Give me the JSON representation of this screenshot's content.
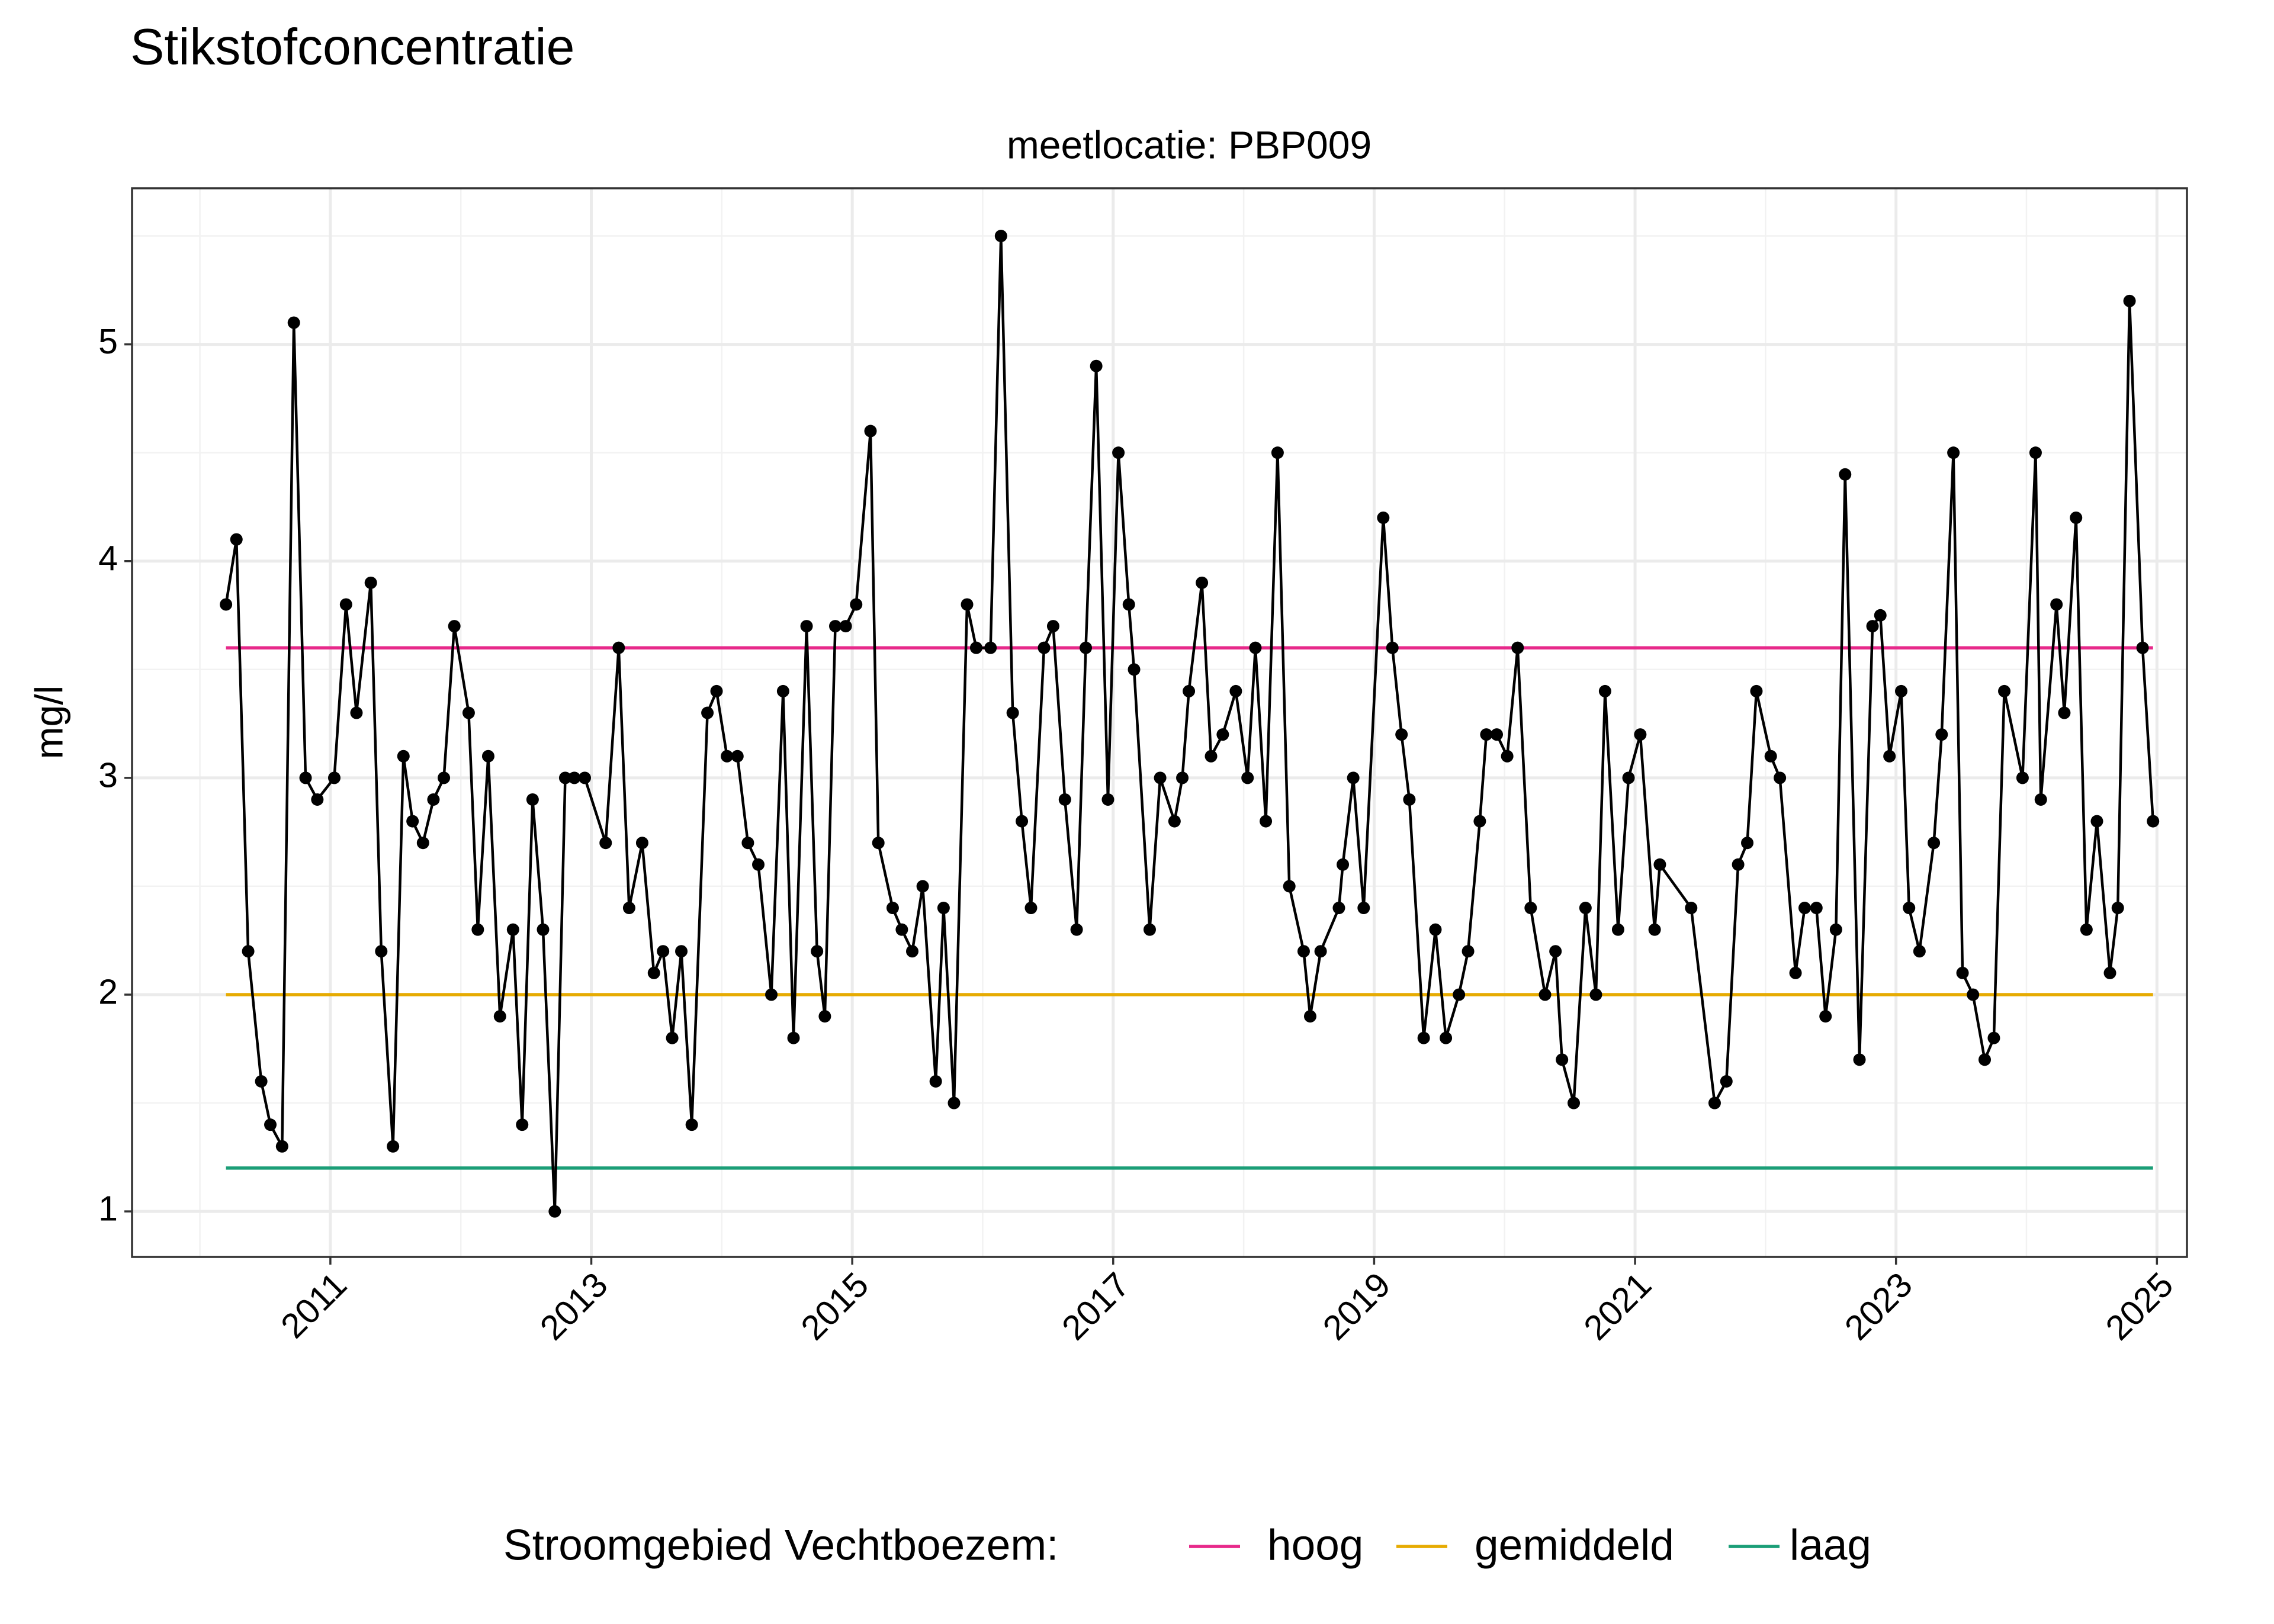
{
  "chart_data": {
    "type": "line",
    "title": "Stikstofconcentratie",
    "subtitle": "meetlocatie: PBP009",
    "ylabel": "mg/l",
    "legend_title": "Stroomgebied Vechtboezem:",
    "legend_position": "bottom",
    "grid": true,
    "xlim": [
      2009.48,
      2025.23
    ],
    "xticks": [
      2011,
      2013,
      2015,
      2017,
      2019,
      2021,
      2023,
      2025
    ],
    "ylim": [
      0.79,
      5.72
    ],
    "yticks": [
      1,
      2,
      3,
      4,
      5
    ],
    "series": [
      {
        "color": "#000000",
        "markers": true,
        "x": [
          2010.2,
          2010.28,
          2010.37,
          2010.47,
          2010.54,
          2010.63,
          2010.72,
          2010.81,
          2010.9,
          2011.03,
          2011.12,
          2011.2,
          2011.31,
          2011.39,
          2011.48,
          2011.56,
          2011.63,
          2011.71,
          2011.79,
          2011.87,
          2011.95,
          2012.06,
          2012.13,
          2012.21,
          2012.3,
          2012.4,
          2012.47,
          2012.55,
          2012.63,
          2012.72,
          2012.8,
          2012.87,
          2012.95,
          2013.11,
          2013.21,
          2013.29,
          2013.39,
          2013.48,
          2013.55,
          2013.62,
          2013.69,
          2013.77,
          2013.89,
          2013.96,
          2014.04,
          2014.12,
          2014.2,
          2014.28,
          2014.38,
          2014.47,
          2014.55,
          2014.65,
          2014.73,
          2014.79,
          2014.87,
          2014.95,
          2015.03,
          2015.14,
          2015.2,
          2015.31,
          2015.38,
          2015.46,
          2015.54,
          2015.64,
          2015.7,
          2015.78,
          2015.88,
          2015.95,
          2016.06,
          2016.14,
          2016.23,
          2016.3,
          2016.37,
          2016.47,
          2016.54,
          2016.63,
          2016.72,
          2016.79,
          2016.87,
          2016.96,
          2017.04,
          2017.12,
          2017.16,
          2017.28,
          2017.36,
          2017.47,
          2017.53,
          2017.58,
          2017.68,
          2017.75,
          2017.84,
          2017.94,
          2018.03,
          2018.09,
          2018.17,
          2018.26,
          2018.35,
          2018.46,
          2018.51,
          2018.59,
          2018.73,
          2018.76,
          2018.84,
          2018.92,
          2019.07,
          2019.14,
          2019.21,
          2019.27,
          2019.38,
          2019.47,
          2019.55,
          2019.65,
          2019.72,
          2019.81,
          2019.86,
          2019.94,
          2020.02,
          2020.1,
          2020.2,
          2020.31,
          2020.39,
          2020.44,
          2020.53,
          2020.62,
          2020.7,
          2020.77,
          2020.87,
          2020.95,
          2021.04,
          2021.15,
          2021.19,
          2021.43,
          2021.61,
          2021.7,
          2021.79,
          2021.86,
          2021.93,
          2022.04,
          2022.11,
          2022.23,
          2022.3,
          2022.39,
          2022.46,
          2022.54,
          2022.61,
          2022.72,
          2022.82,
          2022.88,
          2022.95,
          2023.04,
          2023.1,
          2023.18,
          2023.29,
          2023.35,
          2023.44,
          2023.51,
          2023.59,
          2023.68,
          2023.75,
          2023.83,
          2023.97,
          2024.07,
          2024.11,
          2024.23,
          2024.29,
          2024.38,
          2024.46,
          2024.54,
          2024.64,
          2024.7,
          2024.79,
          2024.89,
          2024.97
        ],
        "values": [
          3.8,
          4.1,
          2.2,
          1.6,
          1.4,
          1.3,
          5.1,
          3.0,
          2.9,
          3.0,
          3.8,
          3.3,
          3.9,
          2.2,
          1.3,
          3.1,
          2.8,
          2.7,
          2.9,
          3.0,
          3.7,
          3.3,
          2.3,
          3.1,
          1.9,
          2.3,
          1.4,
          2.9,
          2.3,
          1.0,
          3.0,
          3.0,
          3.0,
          2.7,
          3.6,
          2.4,
          2.7,
          2.1,
          2.2,
          1.8,
          2.2,
          1.4,
          3.3,
          3.4,
          3.1,
          3.1,
          2.7,
          2.6,
          2.0,
          3.4,
          1.8,
          3.7,
          2.2,
          1.9,
          3.7,
          3.7,
          3.8,
          4.6,
          2.7,
          2.4,
          2.3,
          2.2,
          2.5,
          1.6,
          2.4,
          1.5,
          3.8,
          3.6,
          3.6,
          5.5,
          3.3,
          2.8,
          2.4,
          3.6,
          3.7,
          2.9,
          2.3,
          3.6,
          4.9,
          2.9,
          4.5,
          3.8,
          3.5,
          2.3,
          3.0,
          2.8,
          3.0,
          3.4,
          3.9,
          3.1,
          3.2,
          3.4,
          3.0,
          3.6,
          2.8,
          4.5,
          2.5,
          2.2,
          1.9,
          2.2,
          2.4,
          2.6,
          3.0,
          2.4,
          4.2,
          3.6,
          3.2,
          2.9,
          1.8,
          2.3,
          1.8,
          2.0,
          2.2,
          2.8,
          3.2,
          3.2,
          3.1,
          3.6,
          2.4,
          2.0,
          2.2,
          1.7,
          1.5,
          2.4,
          2.0,
          3.4,
          2.3,
          3.0,
          3.2,
          2.3,
          2.6,
          2.4,
          1.5,
          1.6,
          2.6,
          2.7,
          3.4,
          3.1,
          3.0,
          2.1,
          2.4,
          2.4,
          1.9,
          2.3,
          4.4,
          1.7,
          3.7,
          3.75,
          3.1,
          3.4,
          2.4,
          2.2,
          2.7,
          3.2,
          4.5,
          2.1,
          2.0,
          1.7,
          1.8,
          3.4,
          3.0,
          4.5,
          2.9,
          3.8,
          3.3,
          4.2,
          2.3,
          2.8,
          2.1,
          2.4,
          5.2,
          3.6,
          2.8
        ]
      },
      {
        "name": "hoog",
        "color": "#e7298a",
        "x": [
          2010.2,
          2024.97
        ],
        "values": [
          3.6,
          3.6
        ]
      },
      {
        "name": "gemiddeld",
        "color": "#e6ab02",
        "x": [
          2010.2,
          2024.97
        ],
        "values": [
          2.0,
          2.0
        ]
      },
      {
        "name": "laag",
        "color": "#1b9e77",
        "x": [
          2010.2,
          2024.97
        ],
        "values": [
          1.2,
          1.2
        ]
      }
    ]
  }
}
